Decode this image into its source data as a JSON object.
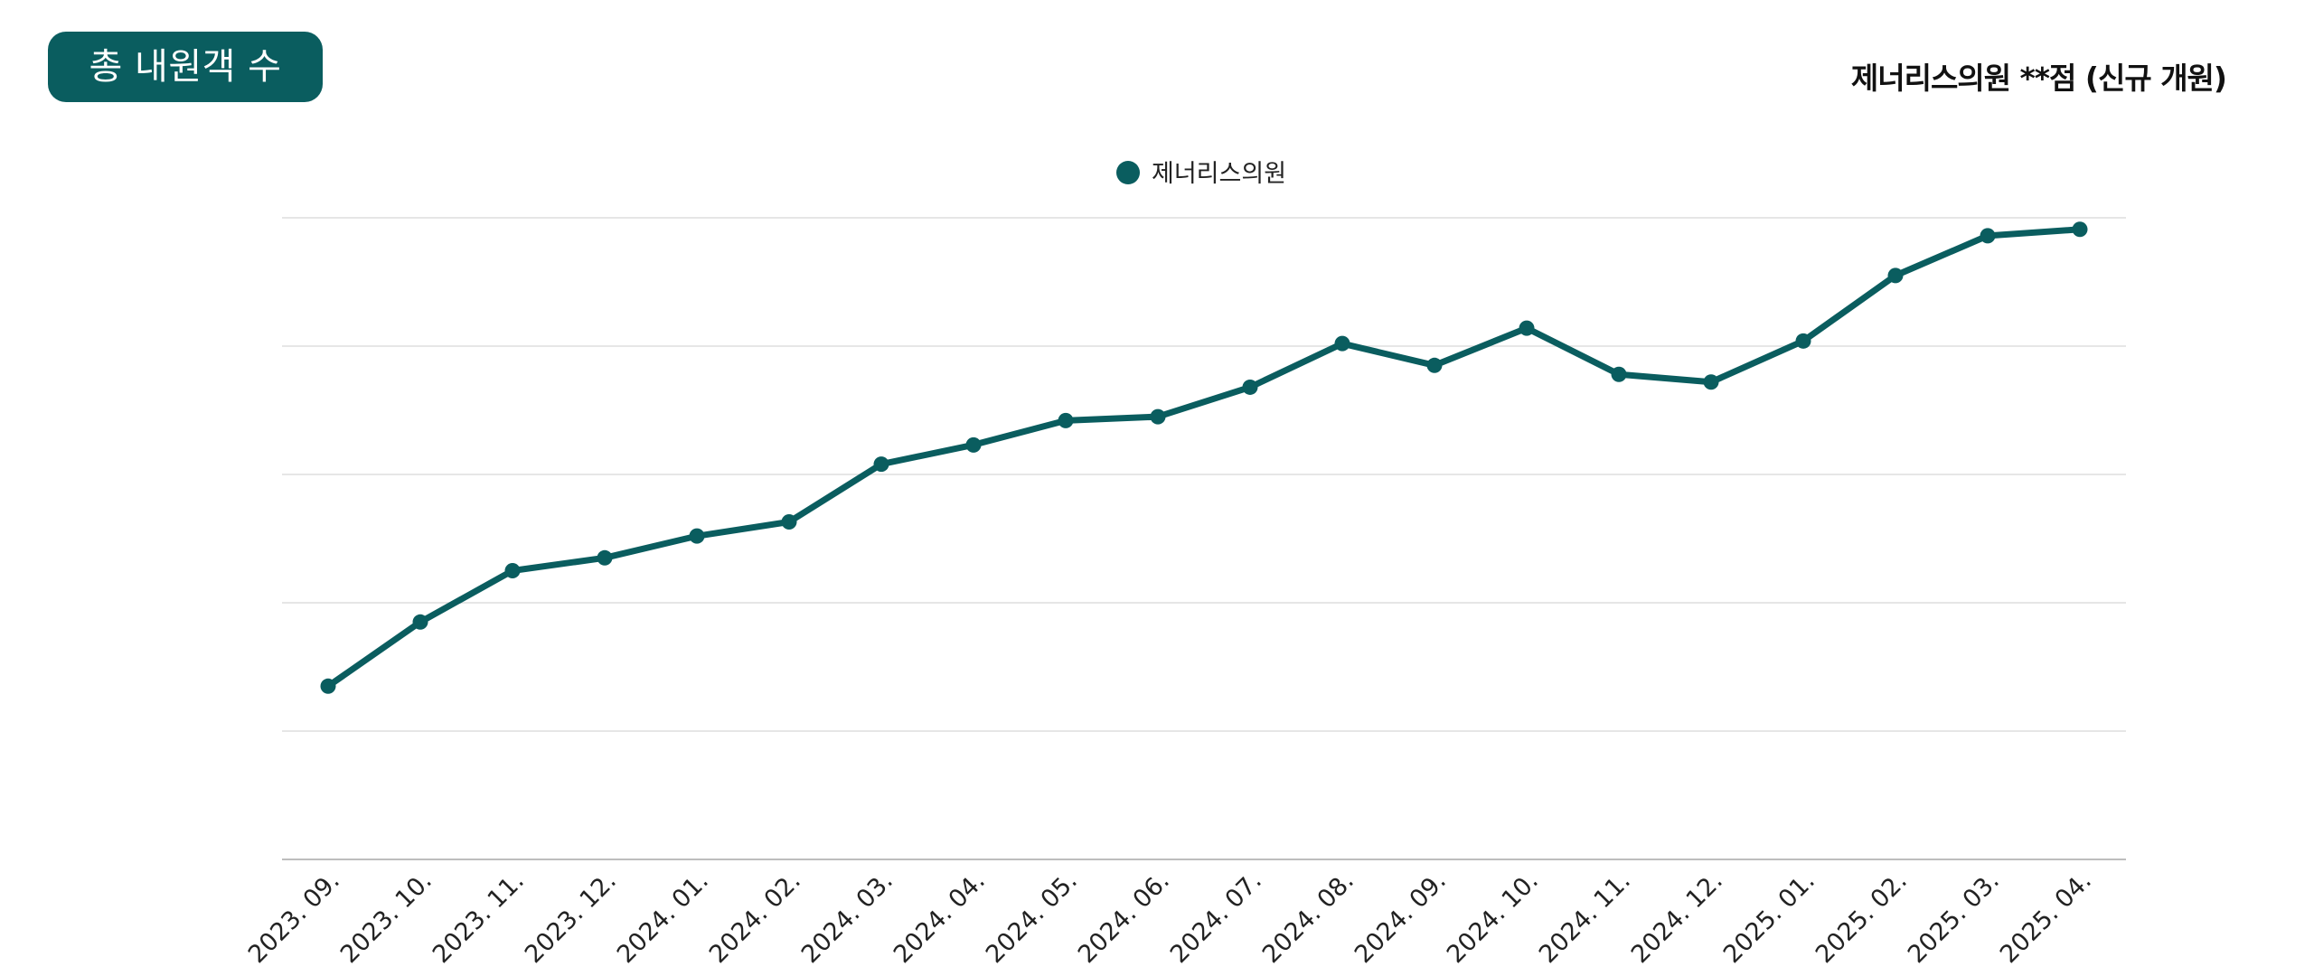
{
  "header": {
    "title": "총 내원객 수",
    "subtitle": "제너리스의원 **점 (신규 개원)"
  },
  "colors": {
    "accent": "#0a5d5f",
    "grid": "#dddddd"
  },
  "chart_data": {
    "type": "line",
    "title": "",
    "xlabel": "",
    "ylabel": "",
    "ylim": [
      0,
      5
    ],
    "grid": true,
    "y_ticks_shown": false,
    "legend_position": "top-center",
    "categories": [
      "2023. 09.",
      "2023. 10.",
      "2023. 11.",
      "2023. 12.",
      "2024. 01.",
      "2024. 02.",
      "2024. 03.",
      "2024. 04.",
      "2024. 05.",
      "2024. 06.",
      "2024. 07.",
      "2024. 08.",
      "2024. 09.",
      "2024. 10.",
      "2024. 11.",
      "2024. 12.",
      "2025. 01.",
      "2025. 02.",
      "2025. 03.",
      "2025. 04."
    ],
    "series": [
      {
        "name": "제너리스의원",
        "color": "#0a5d5f",
        "values": [
          1.35,
          1.85,
          2.25,
          2.35,
          2.52,
          2.63,
          3.08,
          3.23,
          3.42,
          3.45,
          3.68,
          4.02,
          3.85,
          4.14,
          3.78,
          3.72,
          4.04,
          4.55,
          4.86,
          4.91
        ]
      }
    ]
  }
}
